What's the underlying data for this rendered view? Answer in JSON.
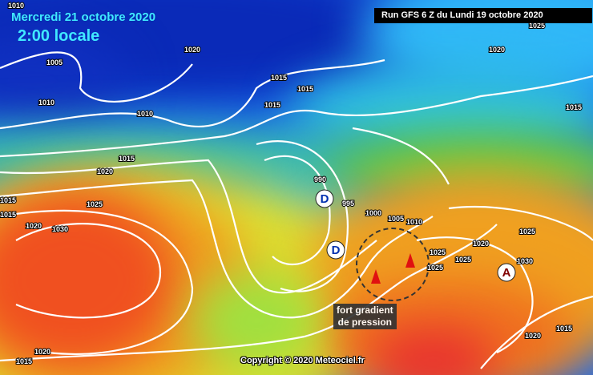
{
  "header": {
    "date": "Mercredi 21 octobre 2020",
    "time": "2:00 locale",
    "run": "Run GFS 6 Z du Lundi 19 octobre 2020"
  },
  "annotation": {
    "line1": "fort gradient",
    "line2": "de pression"
  },
  "copyright": "Copyright © 2020 Meteociel.fr",
  "pressure_systems": [
    {
      "label": "D",
      "type": "low"
    },
    {
      "label": "D",
      "type": "low"
    },
    {
      "label": "A",
      "type": "high"
    }
  ],
  "isobar_labels": [
    "1010",
    "1020",
    "1025",
    "1020",
    "1005",
    "1010",
    "1010",
    "1015",
    "1015",
    "1015",
    "1015",
    "1015",
    "1020",
    "1015",
    "1015",
    "1025",
    "1020",
    "1030",
    "990",
    "995",
    "1000",
    "1005",
    "1010",
    "1020",
    "1025",
    "1025",
    "1025",
    "1025",
    "1030",
    "1020",
    "1015",
    "1020",
    "1015"
  ],
  "colors": {
    "low": "#0030b0",
    "mid": "#40d040",
    "high": "#f04020",
    "isobar": "#ffffff",
    "title": "#40e8ff"
  }
}
